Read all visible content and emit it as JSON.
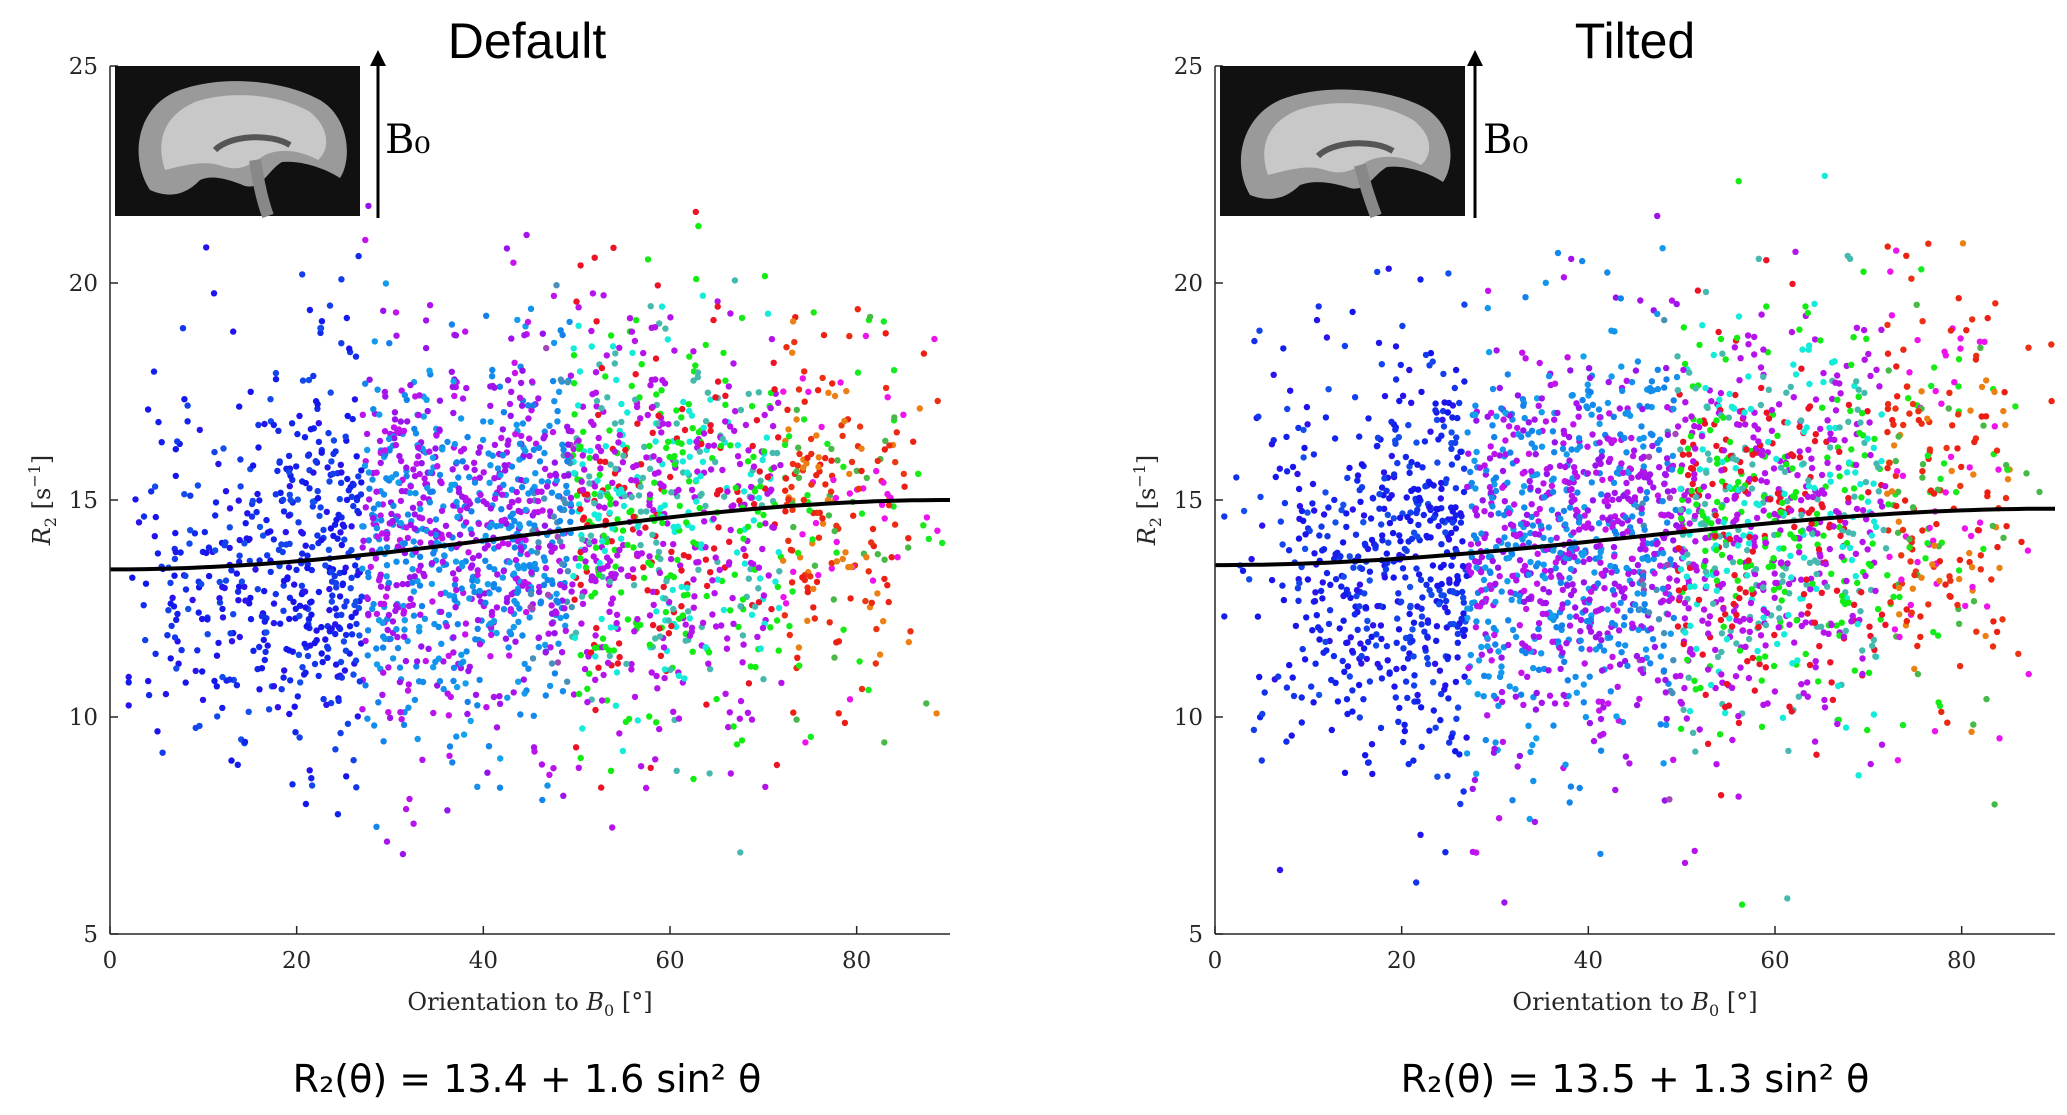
{
  "chart_data": [
    {
      "type": "scatter",
      "title": "Default",
      "xlabel_main": "Orientation to ",
      "xlabel_var": "B",
      "xlabel_sub": "0",
      "xlabel_unit": " [°]",
      "ylabel_var": "R",
      "ylabel_sub": "2",
      "ylabel_unit": " [s",
      "ylabel_exp": "−1",
      "ylabel_close": "]",
      "xlim": [
        0,
        90
      ],
      "ylim": [
        5,
        25
      ],
      "xticks": [
        0,
        20,
        40,
        60,
        80
      ],
      "yticks": [
        5,
        10,
        15,
        20,
        25
      ],
      "fit": {
        "intercept": 13.4,
        "amplitude": 1.6,
        "model": "R2(theta) = a + b sin^2 theta"
      },
      "formula": "R₂(θ) = 13.4 + 1.6 sin² θ",
      "inset_label": "B₀",
      "points": {
        "count": 2600,
        "mean_low_angle": 13.3,
        "mean_high_angle": 15.0,
        "spread_sd": 2.3,
        "x_min": 2,
        "x_max": 90,
        "color_map": "blue (0°) → purple/cyan (40–60°) → green/red (80–90°)"
      }
    },
    {
      "type": "scatter",
      "title": "Tilted",
      "xlabel_main": "Orientation to ",
      "xlabel_var": "B",
      "xlabel_sub": "0",
      "xlabel_unit": " [°]",
      "ylabel_var": "R",
      "ylabel_sub": "2",
      "ylabel_unit": " [s",
      "ylabel_exp": "−1",
      "ylabel_close": "]",
      "xlim": [
        0,
        90
      ],
      "ylim": [
        5,
        25
      ],
      "xticks": [
        0,
        20,
        40,
        60,
        80
      ],
      "yticks": [
        5,
        10,
        15,
        20,
        25
      ],
      "fit": {
        "intercept": 13.5,
        "amplitude": 1.3,
        "model": "R2(theta) = a + b sin^2 theta"
      },
      "formula": "R₂(θ) = 13.5 + 1.3 sin² θ",
      "inset_label": "B₀",
      "points": {
        "count": 2800,
        "mean_low_angle": 13.2,
        "mean_high_angle": 14.8,
        "spread_sd": 2.4,
        "x_min": 1,
        "x_max": 90,
        "color_map": "blue (0°) → purple/cyan (40–60°) → green/red (80–90°)"
      }
    }
  ]
}
